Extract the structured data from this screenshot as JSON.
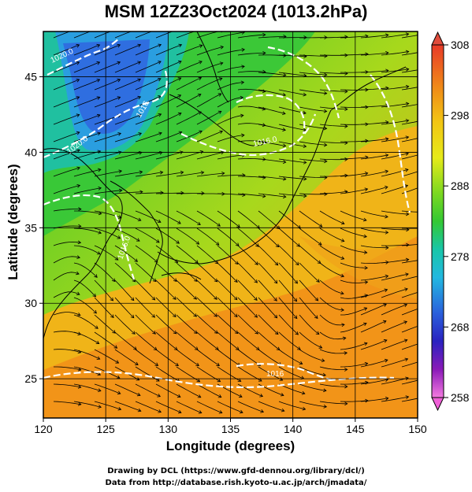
{
  "title": "MSM 12Z23Oct2024 (1013.2hPa)",
  "map": {
    "xlabel": "Longitude (degrees)",
    "ylabel": "Latitude  (degrees)",
    "lon_range": [
      120,
      150
    ],
    "lat_range": [
      22.4,
      48
    ],
    "lon_ticks": [
      "120",
      "125",
      "130",
      "135",
      "140",
      "145",
      "150"
    ],
    "lat_ticks": [
      "25",
      "30",
      "35",
      "40",
      "45"
    ],
    "isobar_labels": [
      "1020.0",
      "1016.0",
      "1016",
      "1016.0",
      "1020.0",
      "1016"
    ]
  },
  "colorbar": {
    "ticks": [
      "308",
      "298",
      "288",
      "278",
      "268",
      "258"
    ],
    "colors": [
      "#e8402a",
      "#ee6a1c",
      "#f19a15",
      "#f2c414",
      "#e8e81a",
      "#9ede1e",
      "#3ccc2a",
      "#19c596",
      "#21c2d8",
      "#2e7fe0",
      "#2b2fcc",
      "#4b1ca8",
      "#b01ac0",
      "#f27ae0"
    ]
  },
  "credits": {
    "line1": "Drawing by DCL (https://www.gfd-dennou.org/library/dcl/)",
    "line2": "Data from http://database.rish.kyoto-u.ac.jp/arch/jmadata/"
  }
}
